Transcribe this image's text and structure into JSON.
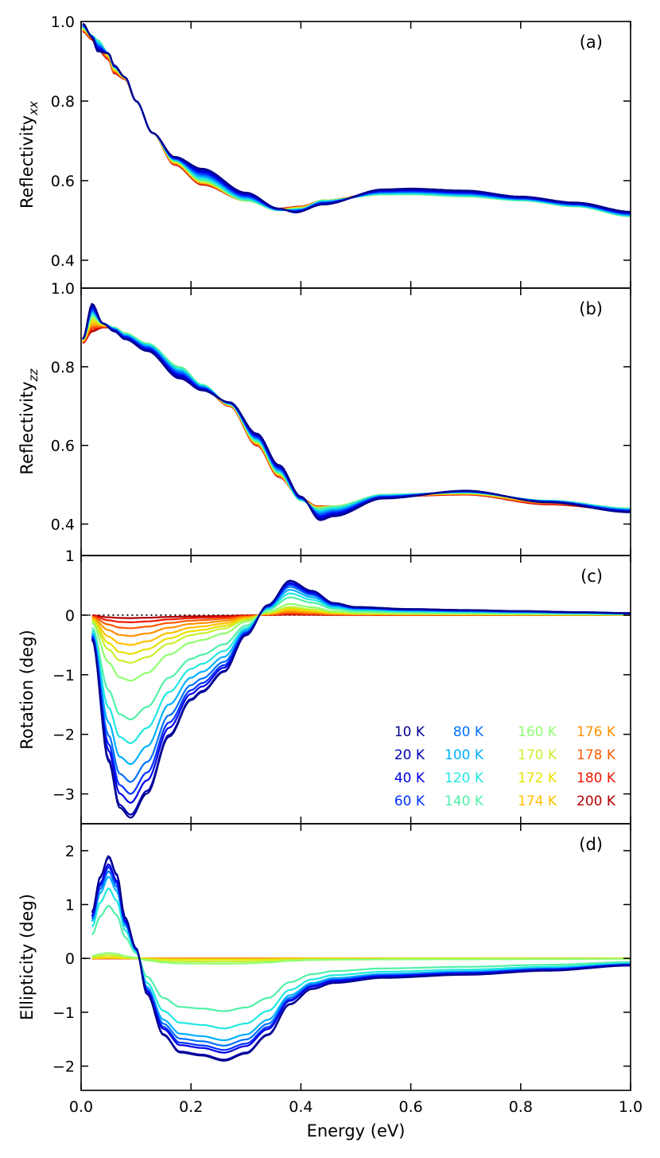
{
  "chart_data": [
    {
      "id": "a",
      "type": "line",
      "panel_label": "(a)",
      "ylabel": "Reflectivity",
      "ylabel_sub": "xx",
      "xlim": [
        0,
        1.0
      ],
      "ylim": [
        0.33,
        1.0
      ],
      "yticks": [
        0.4,
        0.6,
        0.8
      ],
      "ytick_labels": [
        "0.4",
        "0.6",
        "0.8"
      ],
      "top_label": "1.0",
      "top_value": 1.0,
      "knots": {
        "hot": [
          [
            0.003,
            0.975
          ],
          [
            0.02,
            0.955
          ],
          [
            0.03,
            0.93
          ],
          [
            0.05,
            0.905
          ],
          [
            0.06,
            0.87
          ],
          [
            0.08,
            0.855
          ],
          [
            0.1,
            0.8
          ],
          [
            0.13,
            0.72
          ],
          [
            0.17,
            0.64
          ],
          [
            0.22,
            0.59
          ],
          [
            0.3,
            0.55
          ],
          [
            0.36,
            0.53
          ],
          [
            0.4,
            0.535
          ],
          [
            0.44,
            0.55
          ],
          [
            0.55,
            0.57
          ],
          [
            0.6,
            0.575
          ],
          [
            0.7,
            0.565
          ],
          [
            0.8,
            0.555
          ],
          [
            0.9,
            0.54
          ],
          [
            1.0,
            0.515
          ]
        ],
        "cold": [
          [
            0.003,
            0.995
          ],
          [
            0.02,
            0.96
          ],
          [
            0.03,
            0.925
          ],
          [
            0.05,
            0.92
          ],
          [
            0.06,
            0.89
          ],
          [
            0.08,
            0.86
          ],
          [
            0.1,
            0.8
          ],
          [
            0.13,
            0.72
          ],
          [
            0.17,
            0.66
          ],
          [
            0.22,
            0.63
          ],
          [
            0.3,
            0.57
          ],
          [
            0.36,
            0.53
          ],
          [
            0.39,
            0.52
          ],
          [
            0.44,
            0.54
          ],
          [
            0.55,
            0.578
          ],
          [
            0.6,
            0.58
          ],
          [
            0.7,
            0.575
          ],
          [
            0.8,
            0.56
          ],
          [
            0.9,
            0.545
          ],
          [
            1.0,
            0.522
          ]
        ],
        "mid": [
          [
            0.003,
            0.985
          ],
          [
            0.02,
            0.965
          ],
          [
            0.03,
            0.955
          ],
          [
            0.05,
            0.92
          ],
          [
            0.06,
            0.885
          ],
          [
            0.08,
            0.86
          ],
          [
            0.1,
            0.8
          ],
          [
            0.13,
            0.72
          ],
          [
            0.17,
            0.65
          ],
          [
            0.22,
            0.6
          ],
          [
            0.3,
            0.55
          ],
          [
            0.36,
            0.525
          ],
          [
            0.4,
            0.53
          ],
          [
            0.44,
            0.55
          ],
          [
            0.55,
            0.565
          ],
          [
            0.6,
            0.565
          ],
          [
            0.7,
            0.56
          ],
          [
            0.8,
            0.55
          ],
          [
            0.9,
            0.535
          ],
          [
            1.0,
            0.51
          ]
        ]
      }
    },
    {
      "id": "b",
      "type": "line",
      "panel_label": "(b)",
      "ylabel": "Reflectivity",
      "ylabel_sub": "zz",
      "xlim": [
        0,
        1.0
      ],
      "ylim": [
        0.32,
        1.0
      ],
      "yticks": [
        0.4,
        0.6,
        0.8
      ],
      "ytick_labels": [
        "0.4",
        "0.6",
        "0.8"
      ],
      "top_label": "1.0",
      "top_value": 1.0,
      "knots": {
        "hot": [
          [
            0.003,
            0.86
          ],
          [
            0.02,
            0.89
          ],
          [
            0.04,
            0.9
          ],
          [
            0.06,
            0.9
          ],
          [
            0.08,
            0.885
          ],
          [
            0.12,
            0.855
          ],
          [
            0.18,
            0.79
          ],
          [
            0.22,
            0.75
          ],
          [
            0.27,
            0.7
          ],
          [
            0.32,
            0.6
          ],
          [
            0.36,
            0.52
          ],
          [
            0.4,
            0.465
          ],
          [
            0.43,
            0.445
          ],
          [
            0.46,
            0.445
          ],
          [
            0.55,
            0.47
          ],
          [
            0.7,
            0.475
          ],
          [
            0.85,
            0.45
          ],
          [
            1.0,
            0.435
          ]
        ],
        "cold": [
          [
            0.003,
            0.87
          ],
          [
            0.02,
            0.96
          ],
          [
            0.04,
            0.91
          ],
          [
            0.06,
            0.89
          ],
          [
            0.08,
            0.87
          ],
          [
            0.12,
            0.84
          ],
          [
            0.18,
            0.77
          ],
          [
            0.22,
            0.74
          ],
          [
            0.27,
            0.71
          ],
          [
            0.32,
            0.63
          ],
          [
            0.36,
            0.55
          ],
          [
            0.4,
            0.47
          ],
          [
            0.435,
            0.41
          ],
          [
            0.46,
            0.42
          ],
          [
            0.55,
            0.465
          ],
          [
            0.7,
            0.485
          ],
          [
            0.85,
            0.455
          ],
          [
            1.0,
            0.43
          ]
        ],
        "mid": [
          [
            0.003,
            0.87
          ],
          [
            0.02,
            0.93
          ],
          [
            0.04,
            0.91
          ],
          [
            0.06,
            0.9
          ],
          [
            0.08,
            0.885
          ],
          [
            0.12,
            0.86
          ],
          [
            0.18,
            0.8
          ],
          [
            0.22,
            0.755
          ],
          [
            0.27,
            0.705
          ],
          [
            0.32,
            0.61
          ],
          [
            0.36,
            0.53
          ],
          [
            0.4,
            0.46
          ],
          [
            0.43,
            0.44
          ],
          [
            0.46,
            0.445
          ],
          [
            0.55,
            0.475
          ],
          [
            0.7,
            0.48
          ],
          [
            0.85,
            0.46
          ],
          [
            1.0,
            0.44
          ]
        ]
      }
    },
    {
      "id": "c",
      "type": "line",
      "panel_label": "(c)",
      "ylabel": "Rotation (deg)",
      "ylabel_sub": "",
      "xlim": [
        0,
        1.0
      ],
      "ylim": [
        -3.5,
        1.0
      ],
      "yticks": [
        -3,
        -2,
        -1,
        0
      ],
      "ytick_labels": [
        "−3",
        "−2",
        "−1",
        "0"
      ],
      "top_label": "1",
      "top_value": 1.0,
      "zero_line": true,
      "shape": [
        [
          0.02,
          -0.12
        ],
        [
          0.05,
          -0.72
        ],
        [
          0.07,
          -0.95
        ],
        [
          0.09,
          -1.0
        ],
        [
          0.12,
          -0.88
        ],
        [
          0.16,
          -0.6
        ],
        [
          0.2,
          -0.42
        ],
        [
          0.22,
          -0.38
        ],
        [
          0.26,
          -0.28
        ],
        [
          0.3,
          -0.1
        ],
        [
          0.34,
          0.05
        ],
        [
          0.38,
          0.17
        ],
        [
          0.42,
          0.12
        ],
        [
          0.46,
          0.06
        ],
        [
          0.5,
          0.04
        ],
        [
          0.6,
          0.03
        ],
        [
          0.7,
          0.025
        ],
        [
          0.8,
          0.02
        ],
        [
          0.9,
          0.015
        ],
        [
          1.0,
          0.01
        ]
      ],
      "amplitudes": [
        3.4,
        3.35,
        3.15,
        3.0,
        2.8,
        2.5,
        2.15,
        1.75,
        1.1,
        0.8,
        0.65,
        0.5,
        0.35,
        0.22,
        0.12,
        0.05
      ]
    },
    {
      "id": "d",
      "type": "line",
      "panel_label": "(d)",
      "ylabel": "Ellipticity (deg)",
      "ylabel_sub": "",
      "xlim": [
        0,
        1.0
      ],
      "ylim": [
        -2.45,
        2.5
      ],
      "yticks": [
        -2,
        -1,
        0,
        1,
        2
      ],
      "ytick_labels": [
        "−2",
        "−1",
        "0",
        "1",
        "2"
      ],
      "zero_line": true,
      "xticks": [
        0,
        0.2,
        0.4,
        0.6,
        0.8,
        1.0
      ],
      "xtick_labels": [
        "0.0",
        "0.2",
        "0.4",
        "0.6",
        "0.8",
        "1.0"
      ],
      "xlabel": "Energy (eV)",
      "shape": [
        [
          0.02,
          0.45
        ],
        [
          0.035,
          0.8
        ],
        [
          0.05,
          1.0
        ],
        [
          0.065,
          0.82
        ],
        [
          0.08,
          0.4
        ],
        [
          0.1,
          0.1
        ],
        [
          0.12,
          -0.35
        ],
        [
          0.15,
          -0.75
        ],
        [
          0.18,
          -0.92
        ],
        [
          0.22,
          -0.95
        ],
        [
          0.26,
          -1.0
        ],
        [
          0.3,
          -0.93
        ],
        [
          0.34,
          -0.75
        ],
        [
          0.38,
          -0.45
        ],
        [
          0.42,
          -0.3
        ],
        [
          0.46,
          -0.24
        ],
        [
          0.55,
          -0.19
        ],
        [
          0.7,
          -0.16
        ],
        [
          0.85,
          -0.12
        ],
        [
          1.0,
          -0.07
        ]
      ],
      "amplitudes": [
        1.9,
        1.88,
        1.75,
        1.7,
        1.62,
        1.52,
        1.3,
        0.98,
        0.1,
        0.06,
        0.02,
        0.01,
        0.005,
        0.003,
        0.0,
        0.0
      ]
    }
  ],
  "legend": {
    "entries": [
      {
        "label": "10 K",
        "color": "#00008f"
      },
      {
        "label": "20 K",
        "color": "#0000b5"
      },
      {
        "label": "40 K",
        "color": "#0000e6"
      },
      {
        "label": "60 K",
        "color": "#0030ff"
      },
      {
        "label": "80 K",
        "color": "#0070ff"
      },
      {
        "label": "100 K",
        "color": "#00b0ff"
      },
      {
        "label": "120 K",
        "color": "#20e8e0"
      },
      {
        "label": "140 K",
        "color": "#50f0a8"
      },
      {
        "label": "160 K",
        "color": "#90ff70"
      },
      {
        "label": "170 K",
        "color": "#c8f030"
      },
      {
        "label": "172 K",
        "color": "#e8e000"
      },
      {
        "label": "174 K",
        "color": "#ffc000"
      },
      {
        "label": "176 K",
        "color": "#ff9000"
      },
      {
        "label": "178 K",
        "color": "#ff5a00"
      },
      {
        "label": "180 K",
        "color": "#ee1800"
      },
      {
        "label": "200 K",
        "color": "#b00000"
      }
    ]
  }
}
